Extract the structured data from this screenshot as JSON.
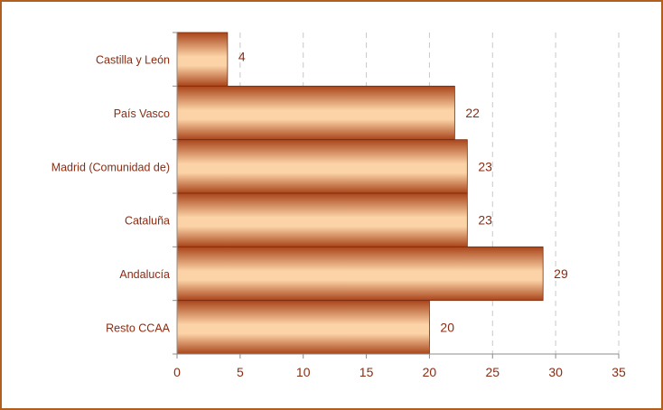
{
  "chart_data": {
    "type": "bar",
    "orientation": "horizontal",
    "categories": [
      "Castilla y León",
      "País Vasco",
      "Madrid (Comunidad de)",
      "Cataluña",
      "Andalucía",
      "Resto CCAA"
    ],
    "values": [
      4,
      22,
      23,
      23,
      29,
      20
    ],
    "data_labels": [
      "4",
      "22",
      "23",
      "23",
      "29",
      "20"
    ],
    "xticks": [
      "0",
      "5",
      "10",
      "15",
      "20",
      "25",
      "30",
      "35"
    ],
    "xlim": [
      0,
      35
    ],
    "grid": "vertical dashed",
    "legend": "none",
    "colors": {
      "bar_light": "#fbd3a6",
      "bar_dark": "#a9441a",
      "text": "#8b2c12",
      "border": "#b05f1e",
      "grid": "#c8c8c8",
      "axis": "#8c8c8c"
    }
  }
}
